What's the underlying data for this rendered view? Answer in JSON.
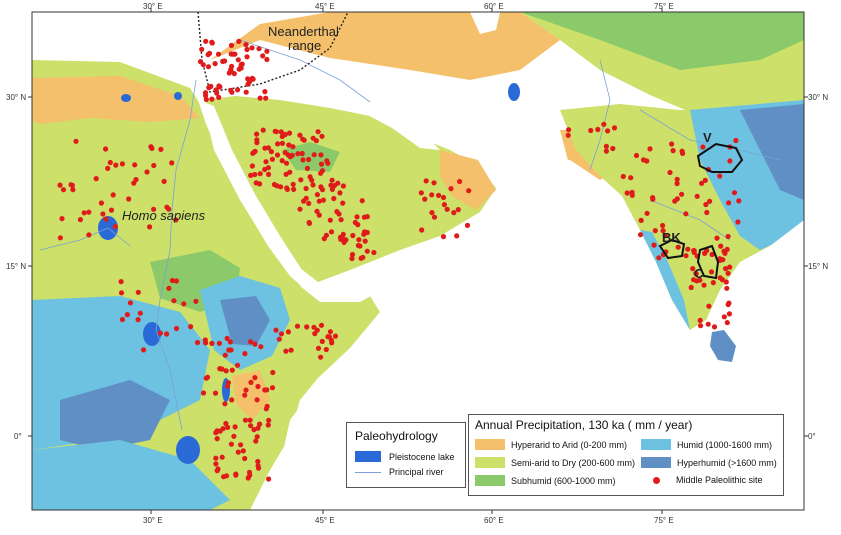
{
  "map": {
    "x_ticks": [
      "30° E",
      "45° E",
      "60° E",
      "75° E"
    ],
    "y_ticks": [
      "30° N",
      "15° N",
      "0°"
    ],
    "labels": {
      "neanderthal_line1": "Neanderthal",
      "neanderthal_line2": "range",
      "homo_sapiens": "Homo sapiens",
      "site_v": "V",
      "site_bk": "BK",
      "site_c": "C"
    }
  },
  "legend_paleo": {
    "title": "Paleohydrology",
    "lake": "Pleistocene lake",
    "river": "Principal river"
  },
  "legend_precip": {
    "title": "Annual Precipitation, 130 ka ( mm / year)",
    "items": [
      {
        "label": "Hyperarid to Arid (0-200 mm)",
        "color": "#f5c06c"
      },
      {
        "label": "Humid (1000-1600 mm)",
        "color": "#6cc2e0"
      },
      {
        "label": "Semi-arid to Dry (200-600 mm)",
        "color": "#cce06a"
      },
      {
        "label": "Hyperhumid (>1600 mm)",
        "color": "#5f8fc4"
      },
      {
        "label": "Subhumid (600-1000 mm)",
        "color": "#8cc96a"
      },
      {
        "label": "Middle Paleolithic site",
        "color": "#e01b1b"
      }
    ]
  },
  "colors": {
    "sea": "#ffffff",
    "arid": "#f5c06c",
    "semiarid": "#cce06a",
    "subhumid": "#8cc96a",
    "humid": "#6cc2e0",
    "hyperhumid": "#5f8fc4",
    "lake": "#2a6ad6",
    "site": "#e01b1b"
  }
}
